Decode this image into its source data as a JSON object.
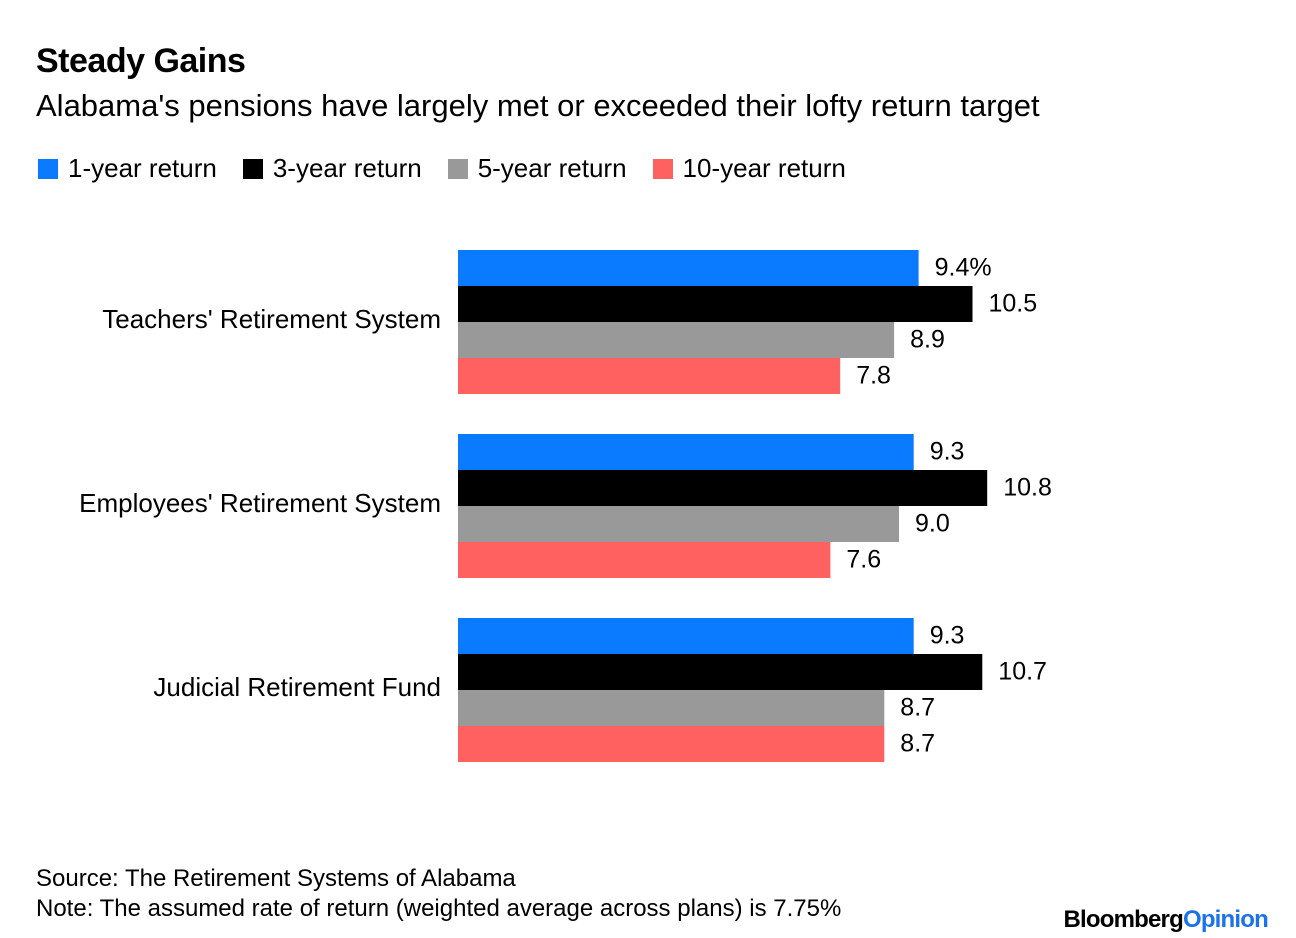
{
  "title": "Steady Gains",
  "subtitle": "Alabama's pensions have largely met or exceeded their lofty return target",
  "legend": [
    {
      "label": "1-year return",
      "color": "#0a7aff"
    },
    {
      "label": "3-year return",
      "color": "#000000"
    },
    {
      "label": "5-year return",
      "color": "#999999"
    },
    {
      "label": "10-year return",
      "color": "#ff6060"
    }
  ],
  "chart_data": {
    "type": "bar",
    "orientation": "horizontal",
    "title": "Steady Gains",
    "subtitle": "Alabama's pensions have largely met or exceeded their lofty return target",
    "categories": [
      "Teachers' Retirement System",
      "Employees' Retirement System",
      "Judicial Retirement Fund"
    ],
    "series": [
      {
        "name": "1-year return",
        "color": "#0a7aff",
        "values": [
          9.4,
          9.3,
          9.3
        ],
        "labels": [
          "9.4%",
          "9.3",
          "9.3"
        ]
      },
      {
        "name": "3-year return",
        "color": "#000000",
        "values": [
          10.5,
          10.8,
          10.7
        ],
        "labels": [
          "10.5",
          "10.8",
          "10.7"
        ]
      },
      {
        "name": "5-year return",
        "color": "#999999",
        "values": [
          8.9,
          9.0,
          8.7
        ],
        "labels": [
          "8.9",
          "9.0",
          "8.7"
        ]
      },
      {
        "name": "10-year return",
        "color": "#ff6060",
        "values": [
          7.8,
          7.6,
          8.7
        ],
        "labels": [
          "7.8",
          "7.6",
          "8.7"
        ]
      }
    ],
    "xlim": [
      0,
      10.8
    ],
    "xlabel": "",
    "ylabel": "",
    "grid": false,
    "legend_position": "top-left"
  },
  "footer": {
    "source": "Source: The Retirement Systems of Alabama",
    "note": "Note: The assumed rate of return (weighted average across plans) is 7.75%"
  },
  "logo": {
    "part1": "Bloomberg",
    "part2": "Opinion"
  }
}
